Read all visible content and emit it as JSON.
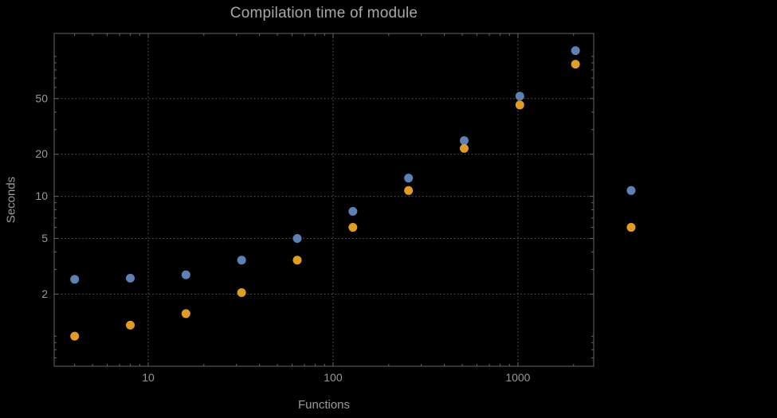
{
  "chart_data": {
    "type": "scatter",
    "title": "Compilation time of module",
    "xlabel": "Functions",
    "ylabel": "Seconds",
    "x_scale": "log",
    "y_scale": "log",
    "grid": true,
    "legend": "none",
    "xlim": [
      3.1,
      2570
    ],
    "ylim": [
      0.61,
      146
    ],
    "x_ticks": [
      10,
      100,
      1000
    ],
    "x_tick_labels": [
      "10",
      "100",
      "1000"
    ],
    "y_ticks": [
      2,
      5,
      10,
      20,
      50
    ],
    "y_tick_labels": [
      "2",
      "5",
      "10",
      "20",
      "50"
    ],
    "point_radius": 5.5,
    "series": [
      {
        "name": "blue",
        "color": "#5e81b5",
        "x": [
          4,
          8,
          16,
          32,
          64,
          128,
          256,
          512,
          1024,
          2048,
          4096
        ],
        "y": [
          2.55,
          2.6,
          2.75,
          3.5,
          5.0,
          7.8,
          13.5,
          25,
          52,
          110,
          11
        ]
      },
      {
        "name": "orange",
        "color": "#e19c24",
        "x": [
          4,
          8,
          16,
          32,
          64,
          128,
          256,
          512,
          1024,
          2048,
          4096
        ],
        "y": [
          1.0,
          1.2,
          1.45,
          2.05,
          3.5,
          6.0,
          11,
          22,
          45,
          88,
          6.0
        ]
      }
    ],
    "colors": {
      "background": "#000000",
      "grid": "#575757",
      "frame": "#646464",
      "tick_text": "#989898",
      "title_text": "#a8a8a8",
      "label_text": "#9a9a9a"
    }
  }
}
